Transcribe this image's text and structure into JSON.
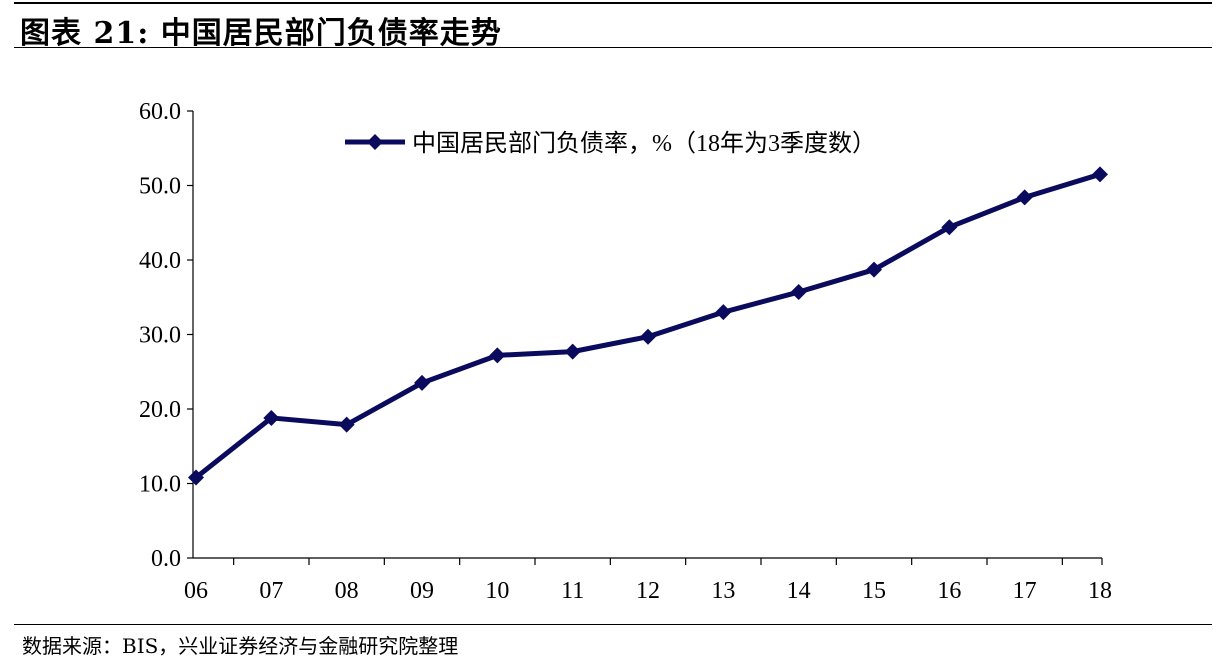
{
  "header": {
    "title": "图表 21: 中国居民部门负债率走势"
  },
  "footer": {
    "source": "数据来源：BIS，兴业证券经济与金融研究院整理"
  },
  "colors": {
    "series": "#0B0B5E",
    "axis": "#000000"
  },
  "chart_data": {
    "type": "line",
    "categories": [
      "06",
      "07",
      "08",
      "09",
      "10",
      "11",
      "12",
      "13",
      "14",
      "15",
      "16",
      "17",
      "18"
    ],
    "series": [
      {
        "name": "中国居民部门负债率，%（18年为3季度数）",
        "values": [
          10.8,
          18.8,
          17.9,
          23.5,
          27.2,
          27.7,
          29.7,
          33.0,
          35.7,
          38.7,
          44.4,
          48.4,
          51.5
        ]
      }
    ],
    "ylim": [
      0,
      60
    ],
    "yticks": [
      "0.0",
      "10.0",
      "20.0",
      "30.0",
      "40.0",
      "50.0",
      "60.0"
    ],
    "xlabel": "",
    "ylabel": "",
    "grid": false,
    "legend": "top-left inside plot",
    "marker": "diamond"
  }
}
